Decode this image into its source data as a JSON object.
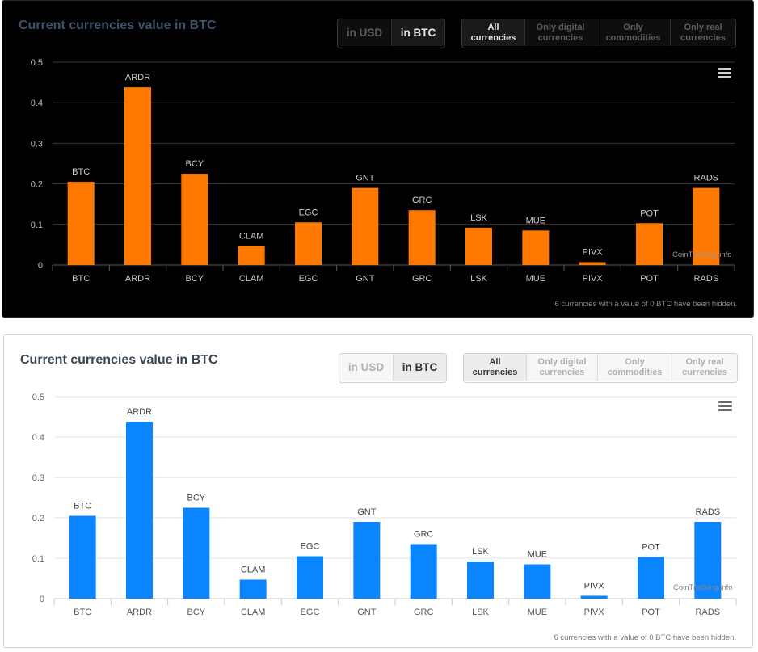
{
  "panels": [
    {
      "theme": "dark",
      "bar_color": "#ff7800",
      "title": "Current currencies value in BTC",
      "unit_buttons": [
        {
          "label": "in USD",
          "active": false
        },
        {
          "label": "in BTC",
          "active": true
        }
      ],
      "filter_buttons": [
        {
          "line1": "All",
          "line2": "currencies",
          "active": true
        },
        {
          "line1": "Only digital",
          "line2": "currencies",
          "active": false
        },
        {
          "line1": "Only",
          "line2": "commodities",
          "active": false
        },
        {
          "line1": "Only real",
          "line2": "currencies",
          "active": false
        }
      ],
      "menu_icon": "hamburger-menu-icon",
      "credit": "CoinTracking.info",
      "footnote": "6 currencies with a value of 0 BTC have been hidden."
    },
    {
      "theme": "light",
      "bar_color": "#0a84ff",
      "title": "Current currencies value in BTC",
      "unit_buttons": [
        {
          "label": "in USD",
          "active": false
        },
        {
          "label": "in BTC",
          "active": true
        }
      ],
      "filter_buttons": [
        {
          "line1": "All",
          "line2": "currencies",
          "active": true
        },
        {
          "line1": "Only digital",
          "line2": "currencies",
          "active": false
        },
        {
          "line1": "Only",
          "line2": "commodities",
          "active": false
        },
        {
          "line1": "Only real",
          "line2": "currencies",
          "active": false
        }
      ],
      "menu_icon": "hamburger-menu-icon",
      "credit": "CoinTracking.info",
      "footnote": "6 currencies with a value of 0 BTC have been hidden."
    }
  ],
  "chart_data": [
    {
      "type": "bar",
      "title": "Current currencies value in BTC",
      "categories": [
        "BTC",
        "ARDR",
        "BCY",
        "CLAM",
        "EGC",
        "GNT",
        "GRC",
        "LSK",
        "MUE",
        "PIVX",
        "POT",
        "RADS"
      ],
      "values": [
        0.205,
        0.438,
        0.225,
        0.047,
        0.105,
        0.19,
        0.135,
        0.092,
        0.085,
        0.007,
        0.103,
        0.19
      ],
      "data_labels": [
        "BTC",
        "ARDR",
        "BCY",
        "CLAM",
        "EGC",
        "GNT",
        "GRC",
        "LSK",
        "MUE",
        "PIVX",
        "POT",
        "RADS"
      ],
      "ylim": [
        0,
        0.5
      ],
      "yticks": [
        "0",
        "0.1",
        "0.2",
        "0.3",
        "0.4",
        "0.5"
      ],
      "grid": true,
      "legend": "none",
      "color": "#ff7800"
    },
    {
      "type": "bar",
      "title": "Current currencies value in BTC",
      "categories": [
        "BTC",
        "ARDR",
        "BCY",
        "CLAM",
        "EGC",
        "GNT",
        "GRC",
        "LSK",
        "MUE",
        "PIVX",
        "POT",
        "RADS"
      ],
      "values": [
        0.205,
        0.438,
        0.225,
        0.047,
        0.105,
        0.19,
        0.135,
        0.092,
        0.085,
        0.007,
        0.103,
        0.19
      ],
      "data_labels": [
        "BTC",
        "ARDR",
        "BCY",
        "CLAM",
        "EGC",
        "GNT",
        "GRC",
        "LSK",
        "MUE",
        "PIVX",
        "POT",
        "RADS"
      ],
      "ylim": [
        0,
        0.5
      ],
      "yticks": [
        "0",
        "0.1",
        "0.2",
        "0.3",
        "0.4",
        "0.5"
      ],
      "grid": true,
      "legend": "none",
      "color": "#0a84ff"
    }
  ]
}
